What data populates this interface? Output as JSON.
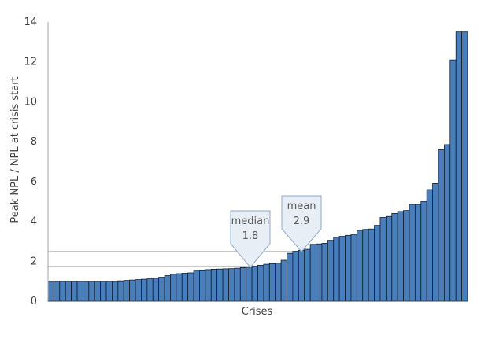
{
  "chart_data": {
    "type": "bar",
    "title": "",
    "xlabel": "Crises",
    "ylabel": "Peak NPL / NPL at crisis start",
    "ylim": [
      0,
      14
    ],
    "yticks": [
      0,
      2,
      4,
      6,
      8,
      10,
      12,
      14
    ],
    "grid": false,
    "colors": {
      "bar": "#4a7ebb",
      "bar_edge": "#0f1e33",
      "reference_line": "#bfbfbf",
      "callout_fill": "#e8eef6",
      "callout_border": "#8fa8c8"
    },
    "values": [
      1.0,
      1.0,
      1.0,
      1.0,
      1.0,
      1.0,
      1.0,
      1.0,
      1.0,
      1.0,
      1.0,
      1.0,
      1.02,
      1.04,
      1.06,
      1.08,
      1.1,
      1.12,
      1.15,
      1.2,
      1.28,
      1.35,
      1.38,
      1.4,
      1.42,
      1.55,
      1.56,
      1.58,
      1.6,
      1.61,
      1.62,
      1.63,
      1.65,
      1.68,
      1.7,
      1.75,
      1.8,
      1.85,
      1.88,
      1.9,
      2.05,
      2.4,
      2.5,
      2.55,
      2.6,
      2.85,
      2.87,
      2.9,
      3.05,
      3.2,
      3.25,
      3.3,
      3.35,
      3.55,
      3.6,
      3.62,
      3.8,
      4.2,
      4.25,
      4.4,
      4.5,
      4.55,
      4.85,
      4.85,
      5.0,
      5.6,
      5.9,
      7.6,
      7.85,
      12.1,
      13.5,
      13.5
    ],
    "reference_lines": [
      {
        "label": "median",
        "value": 1.8,
        "value_label": "1.8"
      },
      {
        "label": "mean",
        "value": 2.9,
        "value_label": "2.9"
      }
    ],
    "callout_lines_at": [
      1.75,
      2.5
    ]
  }
}
